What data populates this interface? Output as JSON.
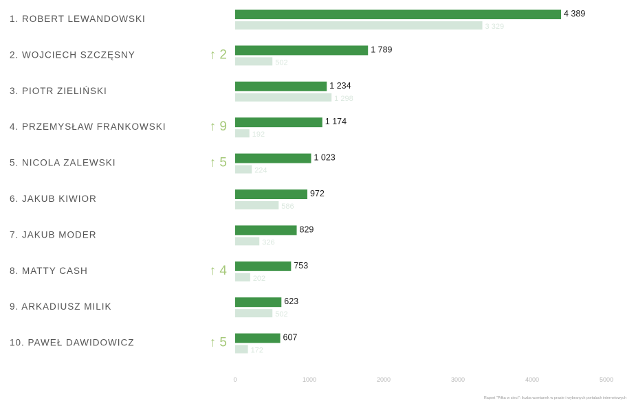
{
  "footnote": "Raport \"Piłka w sieci\": liczba wzmianek w prasie i wybranych portalach internetowych",
  "colors": {
    "current": "#3f9448",
    "previous": "#d4e6da",
    "arrow": "#a6c97a"
  },
  "chart_data": {
    "type": "bar",
    "orientation": "horizontal",
    "title": "",
    "xlabel": "",
    "ylabel": "",
    "xlim": [
      0,
      5000
    ],
    "x_ticks": [
      0,
      1000,
      2000,
      3000,
      4000,
      5000
    ],
    "x_tick_labels": [
      "0",
      "1000",
      "2000",
      "3000",
      "4000",
      "5000"
    ],
    "grid": false,
    "legend": "none",
    "categories": [
      "1.  ROBERT LEWANDOWSKI",
      "2.  WOJCIECH SZCZĘSNY",
      "3.  PIOTR ZIELIŃSKI",
      "4.  PRZEMYSŁAW FRANKOWSKI",
      "5.  NICOLA ZALEWSKI",
      "6.  JAKUB KIWIOR",
      "7.  JAKUB MODER",
      "8.  MATTY CASH",
      "9.  ARKADIUSZ MILIK",
      "10. PAWEŁ DAWIDOWICZ"
    ],
    "series": [
      {
        "values": [
          4389,
          1789,
          1234,
          1174,
          1023,
          972,
          829,
          753,
          623,
          607
        ],
        "labels": [
          "4 389",
          "1 789",
          "1 234",
          "1 174",
          "1 023",
          "972",
          "829",
          "753",
          "623",
          "607"
        ]
      },
      {
        "values": [
          3329,
          502,
          1298,
          192,
          224,
          586,
          326,
          202,
          502,
          172
        ],
        "labels": [
          "3 329",
          "502",
          "1 298",
          "192",
          "224",
          "586",
          "326",
          "202",
          "502",
          "172"
        ]
      }
    ],
    "rank_change": [
      "",
      "↑ 2",
      "",
      "↑ 9",
      "↑ 5",
      "",
      "",
      "↑ 4",
      "",
      "↑ 5"
    ]
  }
}
